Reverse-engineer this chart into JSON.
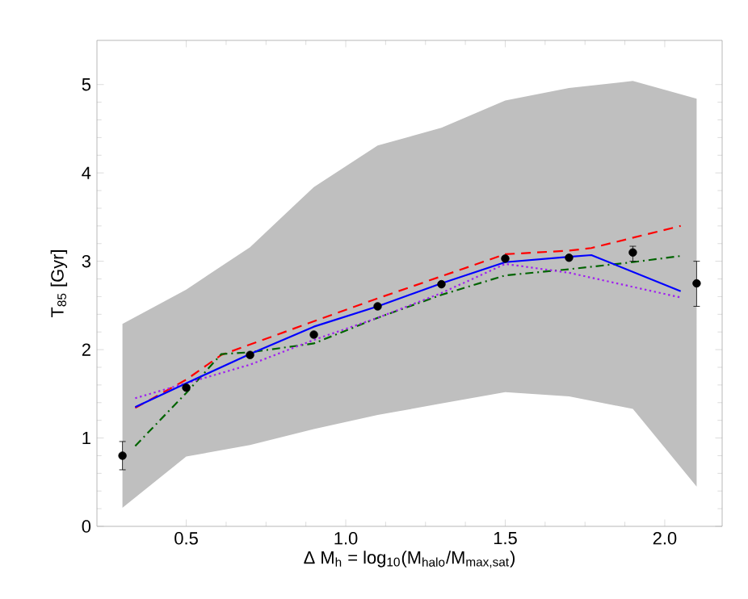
{
  "chart_data": {
    "type": "line",
    "xlabel": "Δ M$_{h}$ = log$_{10}$(M$_{halo}$/M$_{max,sat}$)",
    "ylabel": "T$_{85}$ [Gyr]",
    "xlim": [
      0.22,
      2.18
    ],
    "ylim": [
      0,
      5.5
    ],
    "xticks": [
      0.5,
      {
        "value": 1.0,
        "label": "1.0"
      },
      1.5,
      {
        "value": 2.0,
        "label": "2.0"
      }
    ],
    "yticks": [
      0,
      1,
      2,
      3,
      4,
      5
    ],
    "grid": false,
    "series": [
      {
        "type": "scatter",
        "color": "#000000",
        "x": [
          0.3,
          0.5,
          0.7,
          0.9,
          1.1,
          1.3,
          1.5,
          1.7,
          1.9,
          2.1
        ],
        "values": [
          0.8,
          1.57,
          1.94,
          2.17,
          2.49,
          2.74,
          3.03,
          3.04,
          3.1,
          2.75
        ],
        "errors": [
          [
            0.64,
            0.96
          ],
          null,
          null,
          null,
          null,
          null,
          null,
          null,
          [
            3.0,
            3.17
          ],
          [
            2.49,
            3.0
          ]
        ],
        "lower": [
          0.21,
          0.79,
          0.92,
          1.1,
          1.26,
          1.39,
          1.52,
          1.47,
          1.33,
          0.45
        ],
        "upper": [
          2.29,
          2.68,
          3.16,
          3.84,
          4.31,
          4.51,
          4.82,
          4.96,
          5.04,
          4.84
        ]
      },
      {
        "type": "line",
        "color": "#ff0000",
        "line_style": "dashed",
        "x": [
          0.34,
          0.5,
          0.61,
          0.9,
          1.1,
          1.3,
          1.5,
          1.7,
          1.77,
          2.05
        ],
        "values": [
          1.34,
          1.66,
          1.94,
          2.32,
          2.58,
          2.83,
          3.08,
          3.12,
          3.15,
          3.4
        ]
      },
      {
        "type": "line",
        "color": "#006400",
        "line_style": "dashdot",
        "x": [
          0.34,
          0.5,
          0.61,
          0.7,
          0.9,
          1.1,
          1.3,
          1.5,
          1.7,
          1.9,
          2.05
        ],
        "values": [
          0.91,
          1.51,
          1.95,
          1.97,
          2.07,
          2.36,
          2.62,
          2.84,
          2.91,
          2.99,
          3.06
        ]
      },
      {
        "type": "line",
        "color": "#a020f0",
        "line_style": "dotted",
        "x": [
          0.34,
          0.5,
          0.7,
          0.9,
          1.1,
          1.3,
          1.5,
          1.7,
          1.9,
          2.05
        ],
        "values": [
          1.45,
          1.62,
          1.83,
          2.11,
          2.36,
          2.64,
          2.97,
          2.87,
          2.71,
          2.59
        ]
      },
      {
        "type": "line",
        "color": "#0000ff",
        "line_style": "solid",
        "x": [
          0.34,
          0.5,
          0.7,
          0.9,
          1.1,
          1.3,
          1.5,
          1.7,
          1.77,
          2.05
        ],
        "values": [
          1.35,
          1.62,
          1.95,
          2.26,
          2.49,
          2.75,
          2.99,
          3.05,
          3.07,
          2.66
        ]
      }
    ]
  }
}
